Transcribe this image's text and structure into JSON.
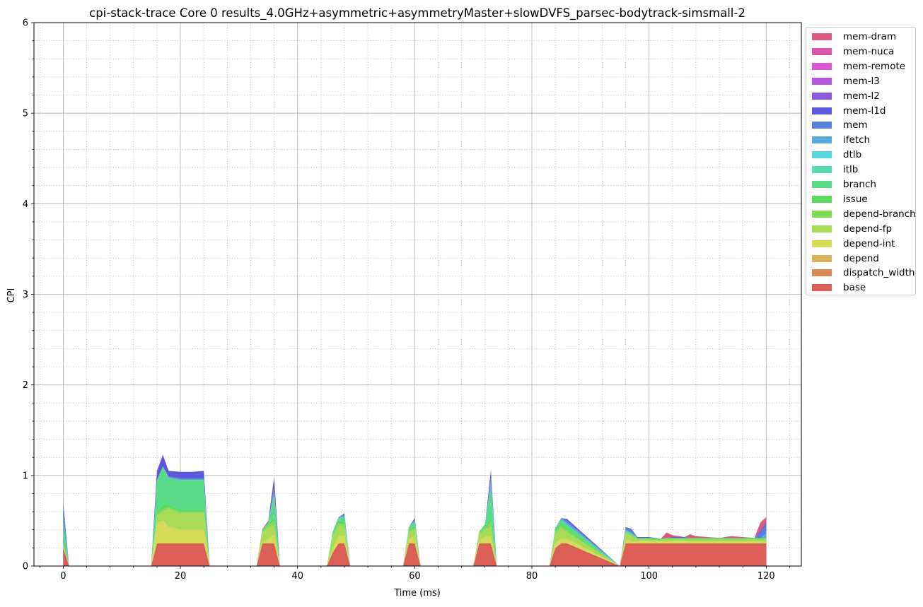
{
  "chart_data": {
    "type": "area",
    "title": "cpi-stack-trace Core 0 results_4.0GHz+asymmetric+asymmetryMaster+slowDVFS_parsec-bodytrack-simsmall-2",
    "xlabel": "Time (ms)",
    "ylabel": "CPI",
    "xlim": [
      -5,
      126
    ],
    "ylim": [
      0,
      6
    ],
    "x_ticks": [
      0,
      20,
      40,
      60,
      80,
      100,
      120
    ],
    "y_ticks": [
      0,
      1,
      2,
      3,
      4,
      5,
      6
    ],
    "grid": true,
    "minor_grid": true,
    "legend_position": "outside-right",
    "x": [
      0,
      1,
      15,
      16,
      17,
      18,
      20,
      22,
      24,
      25,
      33,
      34,
      35,
      36,
      37,
      45,
      46,
      47,
      48,
      49,
      58,
      59,
      60,
      61,
      70,
      71,
      72,
      73,
      74,
      83,
      84,
      85,
      86,
      95,
      96,
      97,
      98,
      100,
      102,
      103,
      104,
      106,
      107,
      108,
      110,
      112,
      114,
      116,
      118,
      119,
      120
    ],
    "series": [
      {
        "name": "base",
        "color": "#db5f57",
        "values": [
          0.2,
          0,
          0,
          0.25,
          0.25,
          0.25,
          0.25,
          0.25,
          0.25,
          0,
          0,
          0.25,
          0.25,
          0.25,
          0,
          0,
          0.15,
          0.25,
          0.25,
          0,
          0,
          0.25,
          0.25,
          0,
          0,
          0.25,
          0.25,
          0.25,
          0,
          0,
          0.2,
          0.25,
          0.25,
          0,
          0.25,
          0.25,
          0.25,
          0.25,
          0.25,
          0.25,
          0.25,
          0.25,
          0.25,
          0.25,
          0.25,
          0.25,
          0.25,
          0.25,
          0.25,
          0.25,
          0.25
        ]
      },
      {
        "name": "dispatch_width",
        "color": "#db8957",
        "values": [
          0,
          0,
          0,
          0,
          0,
          0,
          0,
          0,
          0,
          0,
          0,
          0,
          0,
          0,
          0,
          0,
          0,
          0,
          0,
          0,
          0,
          0,
          0,
          0,
          0,
          0,
          0,
          0,
          0,
          0,
          0,
          0,
          0,
          0,
          0,
          0,
          0,
          0,
          0,
          0,
          0,
          0,
          0,
          0,
          0,
          0,
          0,
          0,
          0,
          0,
          0
        ]
      },
      {
        "name": "depend",
        "color": "#dbb257",
        "values": [
          0,
          0,
          0,
          0,
          0,
          0,
          0,
          0,
          0,
          0,
          0,
          0,
          0,
          0,
          0,
          0,
          0,
          0,
          0,
          0,
          0,
          0,
          0,
          0,
          0,
          0,
          0,
          0,
          0,
          0,
          0,
          0,
          0,
          0,
          0,
          0,
          0,
          0,
          0,
          0,
          0,
          0,
          0,
          0,
          0,
          0,
          0,
          0,
          0,
          0,
          0
        ]
      },
      {
        "name": "depend-int",
        "color": "#d3db57",
        "values": [
          0.02,
          0,
          0,
          0.22,
          0.25,
          0.18,
          0.15,
          0.15,
          0.15,
          0,
          0,
          0.02,
          0.05,
          0.1,
          0,
          0,
          0.05,
          0.08,
          0.08,
          0,
          0,
          0.05,
          0.08,
          0,
          0,
          0.03,
          0.07,
          0.08,
          0,
          0,
          0.05,
          0.05,
          0.05,
          0,
          0.05,
          0.02,
          0.02,
          0.02,
          0.02,
          0.02,
          0.02,
          0.02,
          0.02,
          0.02,
          0.02,
          0.02,
          0.02,
          0.02,
          0.02,
          0.02,
          0.02
        ]
      },
      {
        "name": "depend-fp",
        "color": "#a9db57",
        "values": [
          0.03,
          0,
          0,
          0.08,
          0.1,
          0.2,
          0.18,
          0.18,
          0.18,
          0,
          0,
          0.1,
          0.13,
          0.1,
          0,
          0,
          0.12,
          0.12,
          0.1,
          0,
          0,
          0.07,
          0.07,
          0,
          0,
          0.07,
          0.08,
          0.1,
          0,
          0,
          0.1,
          0.12,
          0.07,
          0,
          0.06,
          0.06,
          0.02,
          0.02,
          0.01,
          0.02,
          0.02,
          0.02,
          0.02,
          0.02,
          0.02,
          0.02,
          0.02,
          0.02,
          0.02,
          0.02,
          0.02
        ]
      },
      {
        "name": "depend-branch",
        "color": "#80db57",
        "values": [
          0,
          0,
          0,
          0.02,
          0.03,
          0.02,
          0.02,
          0.02,
          0.02,
          0,
          0,
          0.02,
          0.02,
          0.05,
          0,
          0,
          0.02,
          0.02,
          0.03,
          0,
          0,
          0.02,
          0.02,
          0,
          0,
          0.02,
          0.02,
          0.05,
          0,
          0,
          0.03,
          0.03,
          0.02,
          0,
          0.01,
          0.01,
          0.01,
          0.01,
          0.01,
          0.01,
          0.01,
          0.01,
          0.01,
          0.01,
          0.01,
          0.01,
          0.01,
          0.01,
          0.01,
          0.01,
          0.01
        ]
      },
      {
        "name": "issue",
        "color": "#57db5f",
        "values": [
          0,
          0,
          0,
          0.03,
          0.05,
          0.02,
          0.02,
          0.02,
          0.02,
          0,
          0,
          0.01,
          0.01,
          0.05,
          0,
          0,
          0.02,
          0.03,
          0.03,
          0,
          0,
          0.02,
          0.03,
          0,
          0,
          0.01,
          0.02,
          0.05,
          0,
          0,
          0.02,
          0.03,
          0.02,
          0,
          0.01,
          0.01,
          0.01,
          0.01,
          0.01,
          0.01,
          0.01,
          0.01,
          0.01,
          0.01,
          0.01,
          0.01,
          0.01,
          0.01,
          0.01,
          0.01,
          0.01
        ]
      },
      {
        "name": "branch",
        "color": "#57db89",
        "values": [
          0.2,
          0,
          0,
          0.35,
          0.42,
          0.3,
          0.33,
          0.33,
          0.33,
          0,
          0,
          0,
          0.02,
          0.25,
          0,
          0,
          0.02,
          0.03,
          0.05,
          0,
          0,
          0.02,
          0.04,
          0,
          0,
          0,
          0.02,
          0.35,
          0,
          0,
          0.02,
          0.03,
          0.05,
          0,
          0.01,
          0.01,
          0,
          0,
          0,
          0,
          0,
          0,
          0,
          0,
          0,
          0,
          0,
          0,
          0,
          0,
          0
        ]
      },
      {
        "name": "itlb",
        "color": "#57dbb2",
        "values": [
          0,
          0,
          0,
          0,
          0,
          0,
          0,
          0,
          0,
          0,
          0,
          0,
          0,
          0,
          0,
          0,
          0,
          0,
          0,
          0,
          0,
          0,
          0,
          0,
          0,
          0,
          0,
          0,
          0,
          0,
          0,
          0,
          0,
          0,
          0,
          0,
          0,
          0,
          0,
          0,
          0,
          0,
          0,
          0,
          0,
          0,
          0,
          0,
          0,
          0,
          0
        ]
      },
      {
        "name": "dtlb",
        "color": "#57d3db",
        "values": [
          0,
          0,
          0,
          0,
          0,
          0,
          0,
          0,
          0,
          0,
          0,
          0,
          0,
          0,
          0,
          0,
          0,
          0,
          0,
          0,
          0,
          0,
          0,
          0,
          0,
          0,
          0,
          0,
          0,
          0,
          0,
          0,
          0,
          0,
          0,
          0,
          0,
          0,
          0,
          0,
          0,
          0,
          0,
          0,
          0,
          0,
          0,
          0,
          0,
          0,
          0
        ]
      },
      {
        "name": "ifetch",
        "color": "#57a9db",
        "values": [
          0.1,
          0,
          0,
          0,
          0,
          0.01,
          0.01,
          0.01,
          0.01,
          0,
          0,
          0,
          0,
          0.02,
          0,
          0,
          0,
          0.01,
          0.02,
          0,
          0,
          0,
          0.01,
          0,
          0,
          0,
          0,
          0.05,
          0,
          0,
          0,
          0.01,
          0.02,
          0,
          0.01,
          0.01,
          0,
          0,
          0,
          0,
          0,
          0,
          0,
          0,
          0,
          0,
          0,
          0,
          0,
          0,
          0.05
        ]
      },
      {
        "name": "mem",
        "color": "#5780db",
        "values": [
          0.1,
          0,
          0,
          0,
          0,
          0.01,
          0.01,
          0.01,
          0.01,
          0,
          0,
          0,
          0,
          0.05,
          0,
          0,
          0,
          0,
          0.01,
          0,
          0,
          0,
          0.02,
          0,
          0,
          0,
          0,
          0.05,
          0,
          0,
          0,
          0.01,
          0.02,
          0,
          0.02,
          0.03,
          0,
          0,
          0,
          0,
          0,
          0,
          0,
          0,
          0,
          0,
          0,
          0,
          0,
          0.05,
          0.1
        ]
      },
      {
        "name": "mem-l1d",
        "color": "#5f57db",
        "values": [
          0.05,
          0,
          0,
          0.1,
          0.12,
          0.06,
          0.07,
          0.07,
          0.08,
          0,
          0,
          0,
          0.01,
          0.1,
          0,
          0,
          0,
          0,
          0.01,
          0,
          0,
          0,
          0.01,
          0,
          0,
          0,
          0,
          0.07,
          0,
          0,
          0,
          0,
          0.02,
          0,
          0.01,
          0.01,
          0.01,
          0.01,
          0,
          0,
          0.01,
          0.01,
          0,
          0,
          0,
          0,
          0,
          0,
          0,
          0.02,
          0.02
        ]
      },
      {
        "name": "mem-l2",
        "color": "#8957db",
        "values": [
          0,
          0,
          0,
          0,
          0.01,
          0,
          0,
          0,
          0,
          0,
          0,
          0,
          0,
          0.01,
          0,
          0,
          0,
          0,
          0,
          0,
          0,
          0,
          0,
          0,
          0,
          0,
          0,
          0.01,
          0,
          0,
          0,
          0,
          0,
          0,
          0,
          0,
          0,
          0,
          0,
          0,
          0,
          0,
          0,
          0,
          0,
          0,
          0,
          0,
          0,
          0,
          0
        ]
      },
      {
        "name": "mem-l3",
        "color": "#b257db",
        "values": [
          0,
          0,
          0,
          0,
          0,
          0,
          0,
          0,
          0,
          0,
          0,
          0,
          0,
          0,
          0,
          0,
          0,
          0,
          0,
          0,
          0,
          0,
          0,
          0,
          0,
          0,
          0,
          0,
          0,
          0,
          0,
          0,
          0,
          0,
          0,
          0,
          0,
          0,
          0,
          0,
          0,
          0,
          0,
          0,
          0,
          0,
          0,
          0,
          0,
          0,
          0
        ]
      },
      {
        "name": "mem-remote",
        "color": "#db57d3",
        "values": [
          0,
          0,
          0,
          0,
          0,
          0,
          0,
          0,
          0,
          0,
          0,
          0,
          0,
          0,
          0,
          0,
          0,
          0,
          0,
          0,
          0,
          0,
          0,
          0,
          0,
          0,
          0,
          0,
          0,
          0,
          0,
          0,
          0,
          0,
          0,
          0,
          0,
          0,
          0,
          0,
          0,
          0,
          0,
          0,
          0,
          0,
          0,
          0,
          0,
          0,
          0
        ]
      },
      {
        "name": "mem-nuca",
        "color": "#db57a9",
        "values": [
          0,
          0,
          0,
          0,
          0,
          0,
          0,
          0,
          0,
          0,
          0,
          0,
          0,
          0,
          0,
          0,
          0,
          0,
          0,
          0,
          0,
          0,
          0,
          0,
          0,
          0,
          0,
          0,
          0,
          0,
          0,
          0,
          0,
          0,
          0,
          0,
          0,
          0,
          0,
          0,
          0,
          0,
          0,
          0,
          0,
          0,
          0,
          0,
          0,
          0,
          0
        ]
      },
      {
        "name": "mem-dram",
        "color": "#db5780",
        "values": [
          0,
          0,
          0,
          0,
          0,
          0,
          0,
          0,
          0,
          0,
          0,
          0.01,
          0.01,
          0.01,
          0,
          0,
          0,
          0,
          0,
          0,
          0,
          0,
          0,
          0,
          0,
          0,
          0,
          0,
          0,
          0,
          0,
          0,
          0,
          0,
          0,
          0,
          0,
          0,
          0,
          0.06,
          0.02,
          0,
          0.04,
          0.02,
          0.01,
          0,
          0.02,
          0.01,
          0,
          0.1,
          0.06
        ]
      }
    ]
  }
}
